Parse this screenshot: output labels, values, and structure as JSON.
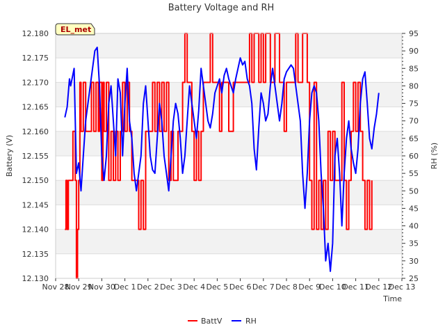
{
  "chart_data": {
    "type": "line",
    "title": "Battery Voltage and RH",
    "station_label": "EL_met",
    "xlabel": "Time",
    "ylabel_left": "Battery (V)",
    "ylabel_right": "RH (%)",
    "x_ticks": [
      "Nov 28",
      "Nov 29",
      "Nov 30",
      "Dec 1",
      "Dec 2",
      "Dec 3",
      "Dec 4",
      "Dec 5",
      "Dec 6",
      "Dec 7",
      "Dec 8",
      "Dec 9",
      "Dec 10",
      "Dec 11",
      "Dec 12",
      "Dec 13"
    ],
    "xlim": [
      0,
      15
    ],
    "ylim_left": [
      12.13,
      12.18
    ],
    "y_ticks_left": [
      "12.130",
      "12.135",
      "12.140",
      "12.145",
      "12.150",
      "12.155",
      "12.160",
      "12.165",
      "12.170",
      "12.175",
      "12.180"
    ],
    "ylim_right": [
      25,
      95
    ],
    "y_ticks_right": [
      "25",
      "30",
      "35",
      "40",
      "45",
      "50",
      "55",
      "60",
      "65",
      "70",
      "75",
      "80",
      "85",
      "90",
      "95"
    ],
    "legend": [
      {
        "name": "BattV",
        "color": "#ff0000"
      },
      {
        "name": "RH",
        "color": "#0000ff"
      }
    ],
    "series": [
      {
        "name": "BattV",
        "axis": "left",
        "color": "#ff0000",
        "points": [
          [
            0.4,
            12.14
          ],
          [
            0.45,
            12.15
          ],
          [
            0.5,
            12.14
          ],
          [
            0.55,
            12.15
          ],
          [
            0.7,
            12.15
          ],
          [
            0.75,
            12.16
          ],
          [
            0.85,
            12.15
          ],
          [
            0.9,
            12.13
          ],
          [
            0.95,
            12.14
          ],
          [
            1.0,
            12.15
          ],
          [
            1.05,
            12.17
          ],
          [
            1.1,
            12.16
          ],
          [
            1.2,
            12.17
          ],
          [
            1.3,
            12.16
          ],
          [
            1.5,
            12.16
          ],
          [
            1.55,
            12.17
          ],
          [
            1.65,
            12.16
          ],
          [
            1.75,
            12.17
          ],
          [
            1.85,
            12.16
          ],
          [
            1.9,
            12.17
          ],
          [
            2.0,
            12.15
          ],
          [
            2.05,
            12.17
          ],
          [
            2.1,
            12.16
          ],
          [
            2.2,
            12.17
          ],
          [
            2.3,
            12.15
          ],
          [
            2.4,
            12.16
          ],
          [
            2.5,
            12.15
          ],
          [
            2.6,
            12.16
          ],
          [
            2.7,
            12.15
          ],
          [
            2.8,
            12.16
          ],
          [
            2.9,
            12.17
          ],
          [
            3.0,
            12.16
          ],
          [
            3.1,
            12.17
          ],
          [
            3.2,
            12.16
          ],
          [
            3.3,
            12.15
          ],
          [
            3.5,
            12.15
          ],
          [
            3.6,
            12.14
          ],
          [
            3.7,
            12.15
          ],
          [
            3.8,
            12.14
          ],
          [
            3.9,
            12.16
          ],
          [
            4.1,
            12.16
          ],
          [
            4.2,
            12.17
          ],
          [
            4.3,
            12.16
          ],
          [
            4.4,
            12.17
          ],
          [
            4.5,
            12.16
          ],
          [
            4.6,
            12.17
          ],
          [
            4.7,
            12.16
          ],
          [
            4.8,
            12.17
          ],
          [
            4.9,
            12.15
          ],
          [
            5.0,
            12.16
          ],
          [
            5.1,
            12.15
          ],
          [
            5.3,
            12.16
          ],
          [
            5.5,
            12.17
          ],
          [
            5.6,
            12.18
          ],
          [
            5.7,
            12.17
          ],
          [
            5.9,
            12.16
          ],
          [
            6.0,
            12.15
          ],
          [
            6.1,
            12.16
          ],
          [
            6.2,
            12.15
          ],
          [
            6.3,
            12.16
          ],
          [
            6.4,
            12.17
          ],
          [
            6.6,
            12.17
          ],
          [
            6.7,
            12.18
          ],
          [
            6.8,
            12.17
          ],
          [
            7.0,
            12.17
          ],
          [
            7.1,
            12.16
          ],
          [
            7.2,
            12.17
          ],
          [
            7.4,
            12.17
          ],
          [
            7.5,
            12.16
          ],
          [
            7.7,
            12.17
          ],
          [
            8.0,
            12.17
          ],
          [
            8.2,
            12.17
          ],
          [
            8.4,
            12.18
          ],
          [
            8.5,
            12.17
          ],
          [
            8.6,
            12.18
          ],
          [
            8.8,
            12.17
          ],
          [
            8.9,
            12.18
          ],
          [
            9.0,
            12.17
          ],
          [
            9.1,
            12.18
          ],
          [
            9.3,
            12.17
          ],
          [
            9.5,
            12.18
          ],
          [
            9.7,
            12.17
          ],
          [
            9.9,
            12.16
          ],
          [
            10.0,
            12.17
          ],
          [
            10.3,
            12.17
          ],
          [
            10.4,
            12.18
          ],
          [
            10.5,
            12.17
          ],
          [
            10.7,
            12.18
          ],
          [
            10.9,
            12.17
          ],
          [
            11.0,
            12.15
          ],
          [
            11.1,
            12.14
          ],
          [
            11.2,
            12.17
          ],
          [
            11.3,
            12.14
          ],
          [
            11.4,
            12.15
          ],
          [
            11.5,
            12.14
          ],
          [
            11.6,
            12.15
          ],
          [
            11.7,
            12.14
          ],
          [
            11.8,
            12.16
          ],
          [
            11.9,
            12.15
          ],
          [
            12.0,
            12.16
          ],
          [
            12.1,
            12.15
          ],
          [
            12.3,
            12.15
          ],
          [
            12.4,
            12.17
          ],
          [
            12.5,
            12.15
          ],
          [
            12.6,
            12.14
          ],
          [
            12.7,
            12.15
          ],
          [
            12.8,
            12.16
          ],
          [
            12.9,
            12.17
          ],
          [
            13.0,
            12.16
          ],
          [
            13.1,
            12.17
          ],
          [
            13.2,
            12.16
          ],
          [
            13.3,
            12.15
          ],
          [
            13.4,
            12.14
          ],
          [
            13.5,
            12.15
          ],
          [
            13.6,
            12.14
          ],
          [
            13.7,
            12.15
          ]
        ]
      },
      {
        "name": "RH",
        "axis": "right",
        "color": "#0000ff",
        "points": [
          [
            0.4,
            71
          ],
          [
            0.5,
            74
          ],
          [
            0.6,
            82
          ],
          [
            0.65,
            80
          ],
          [
            0.8,
            85
          ],
          [
            0.9,
            55
          ],
          [
            1.0,
            58
          ],
          [
            1.1,
            50
          ],
          [
            1.2,
            60
          ],
          [
            1.3,
            70
          ],
          [
            1.4,
            75
          ],
          [
            1.5,
            80
          ],
          [
            1.6,
            85
          ],
          [
            1.7,
            90
          ],
          [
            1.8,
            91
          ],
          [
            1.9,
            80
          ],
          [
            2.0,
            60
          ],
          [
            2.1,
            53
          ],
          [
            2.2,
            60
          ],
          [
            2.3,
            75
          ],
          [
            2.4,
            80
          ],
          [
            2.5,
            70
          ],
          [
            2.6,
            60
          ],
          [
            2.7,
            82
          ],
          [
            2.8,
            78
          ],
          [
            2.9,
            60
          ],
          [
            3.0,
            75
          ],
          [
            3.1,
            85
          ],
          [
            3.2,
            70
          ],
          [
            3.3,
            65
          ],
          [
            3.4,
            55
          ],
          [
            3.5,
            50
          ],
          [
            3.6,
            55
          ],
          [
            3.7,
            60
          ],
          [
            3.8,
            75
          ],
          [
            3.9,
            80
          ],
          [
            4.0,
            70
          ],
          [
            4.1,
            60
          ],
          [
            4.2,
            56
          ],
          [
            4.3,
            55
          ],
          [
            4.4,
            65
          ],
          [
            4.5,
            75
          ],
          [
            4.6,
            70
          ],
          [
            4.7,
            60
          ],
          [
            4.8,
            55
          ],
          [
            4.9,
            50
          ],
          [
            5.0,
            60
          ],
          [
            5.1,
            70
          ],
          [
            5.2,
            75
          ],
          [
            5.3,
            72
          ],
          [
            5.4,
            65
          ],
          [
            5.5,
            55
          ],
          [
            5.6,
            60
          ],
          [
            5.7,
            70
          ],
          [
            5.8,
            80
          ],
          [
            5.9,
            75
          ],
          [
            6.0,
            70
          ],
          [
            6.1,
            65
          ],
          [
            6.2,
            73
          ],
          [
            6.3,
            85
          ],
          [
            6.4,
            80
          ],
          [
            6.5,
            75
          ],
          [
            6.6,
            70
          ],
          [
            6.7,
            68
          ],
          [
            6.8,
            72
          ],
          [
            6.9,
            78
          ],
          [
            7.0,
            80
          ],
          [
            7.1,
            82
          ],
          [
            7.2,
            78
          ],
          [
            7.3,
            83
          ],
          [
            7.4,
            85
          ],
          [
            7.5,
            82
          ],
          [
            7.6,
            80
          ],
          [
            7.7,
            78
          ],
          [
            7.8,
            82
          ],
          [
            7.9,
            85
          ],
          [
            8.0,
            88
          ],
          [
            8.1,
            86
          ],
          [
            8.2,
            87
          ],
          [
            8.3,
            82
          ],
          [
            8.4,
            80
          ],
          [
            8.5,
            75
          ],
          [
            8.6,
            62
          ],
          [
            8.7,
            56
          ],
          [
            8.8,
            68
          ],
          [
            8.9,
            78
          ],
          [
            9.0,
            75
          ],
          [
            9.1,
            70
          ],
          [
            9.2,
            72
          ],
          [
            9.3,
            80
          ],
          [
            9.4,
            85
          ],
          [
            9.5,
            80
          ],
          [
            9.6,
            75
          ],
          [
            9.7,
            70
          ],
          [
            9.8,
            75
          ],
          [
            9.9,
            82
          ],
          [
            10.0,
            84
          ],
          [
            10.1,
            85
          ],
          [
            10.2,
            86
          ],
          [
            10.3,
            85
          ],
          [
            10.4,
            80
          ],
          [
            10.5,
            75
          ],
          [
            10.6,
            70
          ],
          [
            10.7,
            55
          ],
          [
            10.8,
            45
          ],
          [
            10.9,
            55
          ],
          [
            11.0,
            70
          ],
          [
            11.1,
            78
          ],
          [
            11.2,
            80
          ],
          [
            11.3,
            78
          ],
          [
            11.4,
            70
          ],
          [
            11.5,
            55
          ],
          [
            11.6,
            45
          ],
          [
            11.7,
            30
          ],
          [
            11.8,
            35
          ],
          [
            11.9,
            27
          ],
          [
            12.0,
            35
          ],
          [
            12.1,
            60
          ],
          [
            12.2,
            65
          ],
          [
            12.3,
            55
          ],
          [
            12.4,
            40
          ],
          [
            12.5,
            55
          ],
          [
            12.6,
            65
          ],
          [
            12.7,
            70
          ],
          [
            12.8,
            62
          ],
          [
            12.9,
            58
          ],
          [
            13.0,
            55
          ],
          [
            13.1,
            62
          ],
          [
            13.2,
            75
          ],
          [
            13.3,
            82
          ],
          [
            13.4,
            84
          ],
          [
            13.5,
            75
          ],
          [
            13.6,
            65
          ],
          [
            13.7,
            62
          ],
          [
            13.8,
            68
          ],
          [
            13.9,
            72
          ],
          [
            14.0,
            78
          ]
        ]
      }
    ]
  }
}
